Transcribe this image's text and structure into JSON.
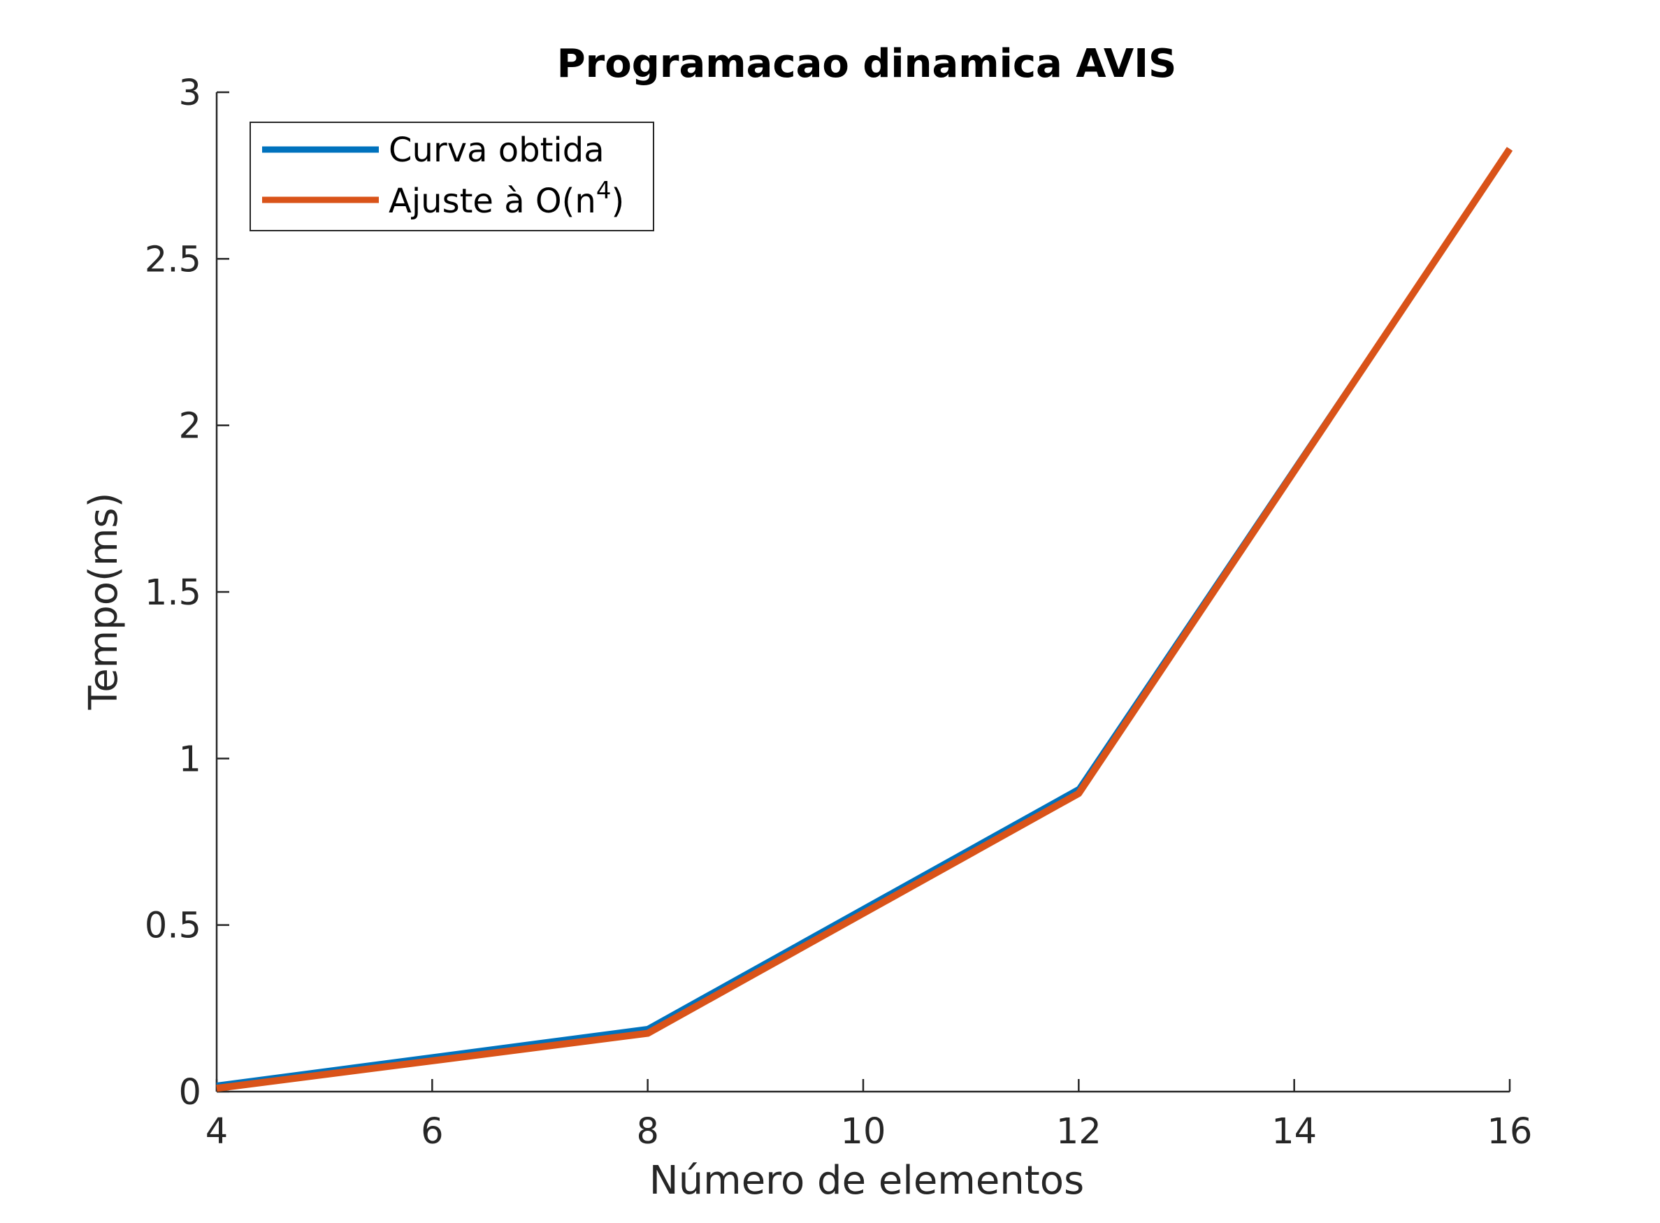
{
  "chart_data": {
    "type": "line",
    "title": "Programacao dinamica AVIS",
    "xlabel": "Número de elementos",
    "ylabel": "Tempo(ms)",
    "xlim": [
      4,
      16
    ],
    "ylim": [
      0,
      3
    ],
    "xticks": [
      4,
      6,
      8,
      10,
      12,
      14,
      16
    ],
    "yticks": [
      0,
      0.5,
      1,
      1.5,
      2,
      2.5,
      3
    ],
    "xtick_labels": [
      "4",
      "6",
      "8",
      "10",
      "12",
      "14",
      "16"
    ],
    "ytick_labels": [
      "0",
      "0.5",
      "1",
      "1.5",
      "2",
      "2.5",
      "3"
    ],
    "x": [
      4,
      8,
      12,
      16
    ],
    "series": [
      {
        "name": "Curva obtida",
        "color": "#0072BD",
        "values": [
          0.02,
          0.19,
          0.91,
          2.83
        ]
      },
      {
        "name": "Ajuste à O(n",
        "name_superscript": "4",
        "name_suffix": ")",
        "color": "#D95319",
        "values": [
          0.01,
          0.175,
          0.895,
          2.83
        ]
      }
    ],
    "grid": false,
    "legend_position": "top-left"
  }
}
